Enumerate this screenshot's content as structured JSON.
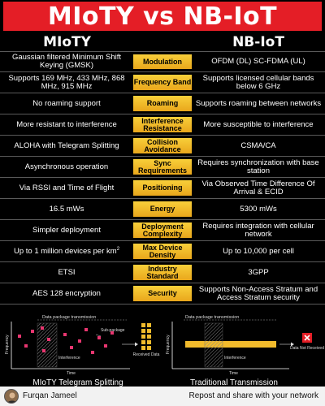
{
  "title": "MIoTY vs NB-IoT",
  "columns": {
    "left": "MIoTY",
    "right": "NB-IoT"
  },
  "rows": [
    {
      "left": "Gaussian filtered Minimum Shift Keying (GMSK)",
      "feature": "Modulation",
      "right": "OFDM (DL) SC-FDMA (UL)"
    },
    {
      "left": "Supports 169 MHz, 433 MHz, 868 MHz, 915 MHz",
      "feature": "Frequency Band",
      "right": "Supports licensed cellular bands below 6 GHz"
    },
    {
      "left": "No roaming support",
      "feature": "Roaming",
      "right": "Supports roaming between networks"
    },
    {
      "left": "More resistant to interference",
      "feature": "Interference Resistance",
      "right": "More susceptible to interference"
    },
    {
      "left": "ALOHA with Telegram Splitting",
      "feature": "Collision Avoidance",
      "right": "CSMA/CA"
    },
    {
      "left": "Asynchronous operation",
      "feature": "Sync Requirements",
      "right": "Requires synchronization with base station"
    },
    {
      "left": "Via RSSI and Time of Flight",
      "feature": "Positioning",
      "right": "Via Observed Time Difference Of Arrival & ECID"
    },
    {
      "left": "16.5 mWs",
      "feature": "Energy",
      "right": "5300 mWs"
    },
    {
      "left": "Simpler deployment",
      "feature": "Deployment Complexity",
      "right": "Requires integration with cellular network"
    },
    {
      "left": "Up to 1 million devices per km",
      "left_sup": "2",
      "feature": "Max Device Density",
      "right": "Up to 10,000 per cell"
    },
    {
      "left": "ETSI",
      "feature": "Industry Standard",
      "right": "3GPP"
    },
    {
      "left": "AES 128 encryption",
      "feature": "Security",
      "right": "Supports Non-Access Stratum and Access Stratum security"
    }
  ],
  "diagrams": {
    "left": {
      "title": "MIoTY Telegram Splitting",
      "top_label": "Data package transmission",
      "y_label": "Frequency",
      "x_label": "Time",
      "interference_label": "Interference",
      "subpackage_label": "Sub-package",
      "result_label": "Received Data"
    },
    "right": {
      "title": "Traditional Transmission",
      "top_label": "Data package transmission",
      "y_label": "Frequency",
      "x_label": "Time",
      "interference_label": "Interference",
      "result_label": "Data Not Received"
    }
  },
  "footer": {
    "author": "Furqan Jameel",
    "cta": "Repost and share with your network"
  },
  "colors": {
    "banner": "#e41e26",
    "feature_box": "#f2bb2c",
    "background": "#000000",
    "packet_pink": "#e93670"
  }
}
